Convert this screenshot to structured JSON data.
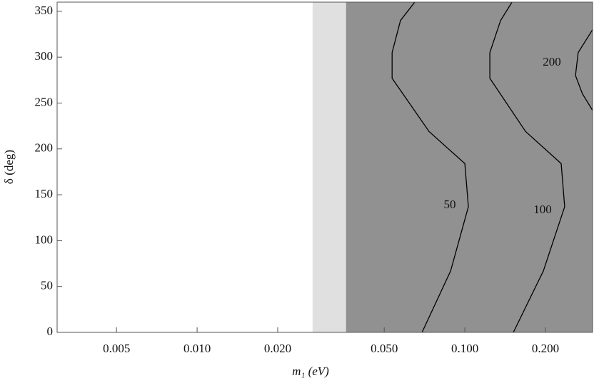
{
  "chart_data": {
    "type": "contour",
    "xlabel": "m₁ (eV)",
    "ylabel": "δ (deg)",
    "xscale": "log",
    "xlim": [
      0.003,
      0.3
    ],
    "ylim": [
      0,
      360
    ],
    "xticks": [
      {
        "value": 0.005,
        "label": "0.005"
      },
      {
        "value": 0.01,
        "label": "0.010"
      },
      {
        "value": 0.02,
        "label": "0.020"
      },
      {
        "value": 0.05,
        "label": "0.050"
      },
      {
        "value": 0.1,
        "label": "0.100"
      },
      {
        "value": 0.2,
        "label": "0.200"
      }
    ],
    "yticks": [
      0,
      50,
      100,
      150,
      200,
      250,
      300,
      350
    ],
    "regions": [
      {
        "x0": 0.027,
        "x1": 0.036,
        "color": "#e0e0e0"
      },
      {
        "x0": 0.036,
        "x1": 0.3,
        "color": "#919191"
      }
    ],
    "series": [
      {
        "name": "50",
        "color": "#000000",
        "x": [
          0.0692,
          0.0885,
          0.1031,
          0.1,
          0.0735,
          0.0535,
          0.0535,
          0.0575,
          0.065
        ],
        "y": [
          0,
          67,
          137,
          184,
          219,
          277,
          305,
          340,
          360
        ]
      },
      {
        "name": "100",
        "color": "#000000",
        "x": [
          0.1518,
          0.1965,
          0.236,
          0.229,
          0.1686,
          0.124,
          0.124,
          0.136,
          0.15
        ],
        "y": [
          0,
          67,
          137,
          184,
          219,
          277,
          305,
          340,
          360
        ]
      },
      {
        "name": "200",
        "color": "#000000",
        "x": [
          0.3,
          0.275,
          0.259,
          0.265,
          0.3
        ],
        "y": [
          242,
          260,
          280,
          305,
          330
        ]
      }
    ]
  }
}
